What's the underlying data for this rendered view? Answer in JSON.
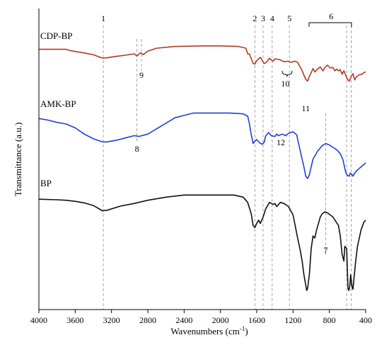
{
  "chart_data": {
    "type": "line",
    "xlabel": "Wavenumbers (cm",
    "xlabel_sup": "-1",
    "xlabel_tail": ")",
    "ylabel": "Transmittance (a.u.)",
    "xlim": [
      4000,
      400
    ],
    "x_reversed": true,
    "xticks": [
      4000,
      3600,
      3200,
      2800,
      2400,
      2000,
      1600,
      1200,
      800,
      400
    ],
    "grid": false,
    "series": [
      {
        "name": "CDP-BP",
        "color": "#b03a26",
        "points": [
          [
            3999,
            0.12
          ],
          [
            3700,
            0.12
          ],
          [
            3650,
            0.145
          ],
          [
            3500,
            0.185
          ],
          [
            3400,
            0.215
          ],
          [
            3300,
            0.275
          ],
          [
            3250,
            0.27
          ],
          [
            3150,
            0.245
          ],
          [
            3050,
            0.225
          ],
          [
            2950,
            0.2
          ],
          [
            2920,
            0.24
          ],
          [
            2880,
            0.18
          ],
          [
            2850,
            0.215
          ],
          [
            2800,
            0.15
          ],
          [
            2700,
            0.1
          ],
          [
            2500,
            0.07
          ],
          [
            2200,
            0.06
          ],
          [
            2000,
            0.06
          ],
          [
            1800,
            0.07
          ],
          [
            1720,
            0.1
          ],
          [
            1700,
            0.2
          ],
          [
            1680,
            0.2
          ],
          [
            1640,
            0.37
          ],
          [
            1620,
            0.38
          ],
          [
            1600,
            0.32
          ],
          [
            1560,
            0.26
          ],
          [
            1520,
            0.37
          ],
          [
            1500,
            0.36
          ],
          [
            1460,
            0.28
          ],
          [
            1420,
            0.33
          ],
          [
            1400,
            0.29
          ],
          [
            1350,
            0.3
          ],
          [
            1300,
            0.34
          ],
          [
            1260,
            0.33
          ],
          [
            1220,
            0.35
          ],
          [
            1180,
            0.33
          ],
          [
            1150,
            0.35
          ],
          [
            1100,
            0.5
          ],
          [
            1060,
            0.65
          ],
          [
            1040,
            0.68
          ],
          [
            1020,
            0.6
          ],
          [
            980,
            0.46
          ],
          [
            960,
            0.52
          ],
          [
            930,
            0.47
          ],
          [
            900,
            0.43
          ],
          [
            870,
            0.5
          ],
          [
            850,
            0.44
          ],
          [
            820,
            0.4
          ],
          [
            790,
            0.45
          ],
          [
            760,
            0.44
          ],
          [
            740,
            0.5
          ],
          [
            720,
            0.47
          ],
          [
            700,
            0.5
          ],
          [
            680,
            0.48
          ],
          [
            660,
            0.56
          ],
          [
            640,
            0.5
          ],
          [
            600,
            0.65
          ],
          [
            580,
            0.68
          ],
          [
            560,
            0.6
          ],
          [
            540,
            0.55
          ],
          [
            520,
            0.66
          ],
          [
            500,
            0.6
          ],
          [
            470,
            0.57
          ],
          [
            440,
            0.56
          ],
          [
            420,
            0.53
          ],
          [
            400,
            0.52
          ]
        ]
      },
      {
        "name": "AMK-BP",
        "color": "#1f3fd8",
        "points": [
          [
            3999,
            0.13
          ],
          [
            3900,
            0.15
          ],
          [
            3800,
            0.18
          ],
          [
            3700,
            0.2
          ],
          [
            3600,
            0.25
          ],
          [
            3500,
            0.33
          ],
          [
            3400,
            0.39
          ],
          [
            3300,
            0.43
          ],
          [
            3250,
            0.43
          ],
          [
            3150,
            0.41
          ],
          [
            3050,
            0.38
          ],
          [
            2950,
            0.35
          ],
          [
            2900,
            0.36
          ],
          [
            2800,
            0.33
          ],
          [
            2700,
            0.26
          ],
          [
            2600,
            0.19
          ],
          [
            2500,
            0.12
          ],
          [
            2400,
            0.09
          ],
          [
            2300,
            0.06
          ],
          [
            2200,
            0.06
          ],
          [
            2000,
            0.06
          ],
          [
            1900,
            0.06
          ],
          [
            1750,
            0.07
          ],
          [
            1700,
            0.1
          ],
          [
            1680,
            0.2
          ],
          [
            1660,
            0.34
          ],
          [
            1640,
            0.45
          ],
          [
            1620,
            0.42
          ],
          [
            1600,
            0.4
          ],
          [
            1570,
            0.44
          ],
          [
            1540,
            0.46
          ],
          [
            1520,
            0.44
          ],
          [
            1500,
            0.35
          ],
          [
            1470,
            0.31
          ],
          [
            1440,
            0.35
          ],
          [
            1400,
            0.36
          ],
          [
            1380,
            0.33
          ],
          [
            1360,
            0.35
          ],
          [
            1320,
            0.33
          ],
          [
            1280,
            0.35
          ],
          [
            1250,
            0.32
          ],
          [
            1200,
            0.3
          ],
          [
            1160,
            0.34
          ],
          [
            1120,
            0.55
          ],
          [
            1080,
            0.75
          ],
          [
            1060,
            0.87
          ],
          [
            1040,
            0.9
          ],
          [
            1020,
            0.85
          ],
          [
            980,
            0.65
          ],
          [
            930,
            0.55
          ],
          [
            880,
            0.48
          ],
          [
            840,
            0.45
          ],
          [
            800,
            0.47
          ],
          [
            760,
            0.5
          ],
          [
            720,
            0.53
          ],
          [
            680,
            0.58
          ],
          [
            650,
            0.66
          ],
          [
            620,
            0.82
          ],
          [
            600,
            0.86
          ],
          [
            580,
            0.87
          ],
          [
            570,
            0.83
          ],
          [
            550,
            0.85
          ],
          [
            540,
            0.87
          ],
          [
            520,
            0.83
          ],
          [
            500,
            0.8
          ],
          [
            470,
            0.77
          ],
          [
            440,
            0.74
          ],
          [
            400,
            0.7
          ]
        ]
      },
      {
        "name": "BP",
        "color": "#111111",
        "points": [
          [
            3999,
            0.13
          ],
          [
            3800,
            0.135
          ],
          [
            3700,
            0.14
          ],
          [
            3600,
            0.15
          ],
          [
            3500,
            0.165
          ],
          [
            3400,
            0.19
          ],
          [
            3300,
            0.24
          ],
          [
            3250,
            0.235
          ],
          [
            3100,
            0.195
          ],
          [
            2950,
            0.17
          ],
          [
            2800,
            0.14
          ],
          [
            2600,
            0.11
          ],
          [
            2400,
            0.09
          ],
          [
            2200,
            0.09
          ],
          [
            2000,
            0.09
          ],
          [
            1850,
            0.09
          ],
          [
            1750,
            0.11
          ],
          [
            1700,
            0.16
          ],
          [
            1660,
            0.27
          ],
          [
            1640,
            0.38
          ],
          [
            1620,
            0.4
          ],
          [
            1600,
            0.36
          ],
          [
            1580,
            0.33
          ],
          [
            1560,
            0.36
          ],
          [
            1530,
            0.3
          ],
          [
            1500,
            0.22
          ],
          [
            1460,
            0.16
          ],
          [
            1420,
            0.18
          ],
          [
            1400,
            0.17
          ],
          [
            1380,
            0.2
          ],
          [
            1340,
            0.16
          ],
          [
            1300,
            0.17
          ],
          [
            1250,
            0.2
          ],
          [
            1200,
            0.28
          ],
          [
            1150,
            0.5
          ],
          [
            1120,
            0.62
          ],
          [
            1100,
            0.72
          ],
          [
            1080,
            0.85
          ],
          [
            1060,
            0.95
          ],
          [
            1050,
            1.0
          ],
          [
            1040,
            0.98
          ],
          [
            1020,
            0.85
          ],
          [
            1000,
            0.6
          ],
          [
            980,
            0.48
          ],
          [
            960,
            0.5
          ],
          [
            940,
            0.42
          ],
          [
            920,
            0.36
          ],
          [
            900,
            0.3
          ],
          [
            880,
            0.27
          ],
          [
            850,
            0.25
          ],
          [
            820,
            0.26
          ],
          [
            790,
            0.28
          ],
          [
            760,
            0.3
          ],
          [
            730,
            0.34
          ],
          [
            700,
            0.38
          ],
          [
            680,
            0.48
          ],
          [
            660,
            0.65
          ],
          [
            640,
            0.72
          ],
          [
            630,
            0.58
          ],
          [
            610,
            0.6
          ],
          [
            595,
            0.98
          ],
          [
            585,
            1.0
          ],
          [
            575,
            0.96
          ],
          [
            565,
            0.85
          ],
          [
            550,
            0.97
          ],
          [
            540,
            0.99
          ],
          [
            525,
            0.85
          ],
          [
            510,
            0.72
          ],
          [
            490,
            0.58
          ],
          [
            470,
            0.5
          ],
          [
            450,
            0.42
          ],
          [
            420,
            0.35
          ],
          [
            400,
            0.33
          ]
        ]
      }
    ],
    "reference_lines": [
      {
        "x": 3290,
        "label": "1"
      },
      {
        "x": 1620,
        "label": "2"
      },
      {
        "x": 1530,
        "label": "3"
      },
      {
        "x": 1430,
        "label": "4"
      },
      {
        "x": 1240,
        "label": "5"
      },
      {
        "x": 840,
        "label": "7"
      },
      {
        "x": 2920,
        "label": "8"
      }
    ],
    "annotations": [
      {
        "label": "6",
        "x": 780
      },
      {
        "label": "9",
        "x": 2870
      },
      {
        "label": "10",
        "x": 1285
      },
      {
        "label": "11",
        "x": 1060
      },
      {
        "label": "12",
        "x": 1335
      }
    ]
  }
}
